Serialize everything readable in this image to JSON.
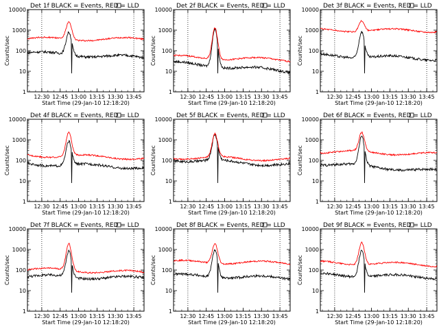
{
  "common": {
    "ylabel": "Counts/sec",
    "xlabel": "Start Time (29-Jan-10 12:18:20)",
    "y_ticks": [
      "1",
      "10",
      "100",
      "1000",
      "10000"
    ],
    "x_ticks": [
      "12:30",
      "12:45",
      "13:00",
      "13:15",
      "13:30",
      "13:45"
    ],
    "colors": {
      "events": "#000000",
      "lld": "#ff0000"
    },
    "xlim_minutes_after_start": [
      0,
      95
    ],
    "ylim": [
      1,
      10000
    ],
    "yscale": "log",
    "peak_time": "12:52"
  },
  "chart_data": [
    {
      "type": "line",
      "title": "Det 1f BLACK = Events, RED = LLD",
      "series": [
        {
          "name": "Events",
          "base": 80,
          "peak": 800,
          "end": 45
        },
        {
          "name": "LLD",
          "base": 380,
          "peak": 2500,
          "end": 360
        }
      ]
    },
    {
      "type": "line",
      "title": "Det 2f BLACK = Events, RED = LLD",
      "series": [
        {
          "name": "Events",
          "base": 25,
          "peak": 1200,
          "end": 10
        },
        {
          "name": "LLD",
          "base": 50,
          "peak": 1300,
          "end": 35
        }
      ]
    },
    {
      "type": "line",
      "title": "Det 3f BLACK = Events, RED = LLD",
      "series": [
        {
          "name": "Events",
          "base": 60,
          "peak": 850,
          "end": 40
        },
        {
          "name": "LLD",
          "base": 1000,
          "peak": 2800,
          "end": 950
        }
      ]
    },
    {
      "type": "line",
      "title": "Det 4f BLACK = Events, RED = LLD",
      "series": [
        {
          "name": "Events",
          "base": 70,
          "peak": 850,
          "end": 45
        },
        {
          "name": "LLD",
          "base": 180,
          "peak": 2400,
          "end": 130
        }
      ]
    },
    {
      "type": "line",
      "title": "Det 5f BLACK = Events, RED = LLD",
      "series": [
        {
          "name": "Events",
          "base": 110,
          "peak": 1800,
          "end": 60
        },
        {
          "name": "LLD",
          "base": 140,
          "peak": 2000,
          "end": 110
        }
      ]
    },
    {
      "type": "line",
      "title": "Det 6f BLACK = Events, RED = LLD",
      "series": [
        {
          "name": "Events",
          "base": 70,
          "peak": 1500,
          "end": 30
        },
        {
          "name": "LLD",
          "base": 270,
          "peak": 2300,
          "end": 200
        }
      ]
    },
    {
      "type": "line",
      "title": "Det 7f BLACK = Events, RED = LLD",
      "series": [
        {
          "name": "Events",
          "base": 50,
          "peak": 850,
          "end": 40
        },
        {
          "name": "LLD",
          "base": 110,
          "peak": 2000,
          "end": 75
        }
      ]
    },
    {
      "type": "line",
      "title": "Det 8f BLACK = Events, RED = LLD",
      "series": [
        {
          "name": "Events",
          "base": 55,
          "peak": 1000,
          "end": 40
        },
        {
          "name": "LLD",
          "base": 250,
          "peak": 1900,
          "end": 220
        }
      ]
    },
    {
      "type": "line",
      "title": "Det 9f BLACK = Events, RED = LLD",
      "series": [
        {
          "name": "Events",
          "base": 60,
          "peak": 950,
          "end": 45
        },
        {
          "name": "LLD",
          "base": 230,
          "peak": 2200,
          "end": 180
        }
      ]
    }
  ]
}
